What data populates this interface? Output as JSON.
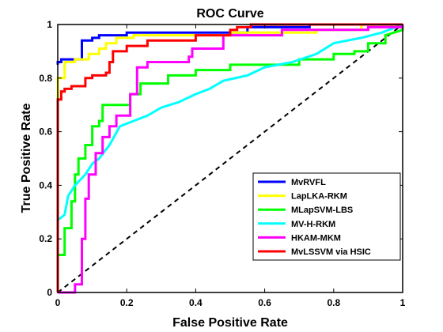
{
  "chart_data": {
    "type": "line",
    "title": "ROC Curve",
    "xlabel": "False Positive Rate",
    "ylabel": "True Positive Rate",
    "xlim": [
      0,
      1
    ],
    "ylim": [
      0,
      1
    ],
    "xticks": [
      "0",
      "0.2",
      "0.4",
      "0.6",
      "0.8",
      "1"
    ],
    "yticks": [
      "0",
      "0.2",
      "0.4",
      "0.6",
      "0.8",
      "1"
    ],
    "grid": false,
    "legend_position": "bottom-right",
    "diagonal": {
      "x": [
        0,
        1
      ],
      "y": [
        0,
        1
      ],
      "color": "#000000",
      "style": "dashed"
    },
    "series": [
      {
        "name": "MvRVFL",
        "color": "#0000FF",
        "points": [
          [
            0,
            0.85
          ],
          [
            0,
            0.86
          ],
          [
            0.01,
            0.86
          ],
          [
            0.01,
            0.87
          ],
          [
            0.07,
            0.87
          ],
          [
            0.07,
            0.94
          ],
          [
            0.1,
            0.94
          ],
          [
            0.1,
            0.95
          ],
          [
            0.12,
            0.95
          ],
          [
            0.12,
            0.96
          ],
          [
            0.2,
            0.96
          ],
          [
            0.2,
            0.97
          ],
          [
            0.28,
            0.97
          ],
          [
            0.55,
            0.97
          ],
          [
            0.55,
            0.99
          ],
          [
            0.73,
            0.99
          ],
          [
            0.73,
            1
          ],
          [
            1,
            1
          ]
        ]
      },
      {
        "name": "LapLKA-RKM",
        "color": "#FFFF00",
        "points": [
          [
            0,
            0.72
          ],
          [
            0,
            0.8
          ],
          [
            0.02,
            0.8
          ],
          [
            0.02,
            0.86
          ],
          [
            0.05,
            0.86
          ],
          [
            0.05,
            0.87
          ],
          [
            0.09,
            0.87
          ],
          [
            0.09,
            0.89
          ],
          [
            0.12,
            0.89
          ],
          [
            0.12,
            0.91
          ],
          [
            0.14,
            0.91
          ],
          [
            0.14,
            0.93
          ],
          [
            0.17,
            0.93
          ],
          [
            0.17,
            0.95
          ],
          [
            0.22,
            0.95
          ],
          [
            0.22,
            0.96
          ],
          [
            0.5,
            0.96
          ],
          [
            0.5,
            0.97
          ],
          [
            0.75,
            0.97
          ],
          [
            0.75,
            0.98
          ],
          [
            0.88,
            0.98
          ],
          [
            0.88,
            1
          ],
          [
            1,
            1
          ]
        ]
      },
      {
        "name": "MLapSVM-LBS",
        "color": "#00FF00",
        "points": [
          [
            0,
            0.14
          ],
          [
            0.02,
            0.14
          ],
          [
            0.02,
            0.24
          ],
          [
            0.04,
            0.24
          ],
          [
            0.04,
            0.34
          ],
          [
            0.05,
            0.34
          ],
          [
            0.05,
            0.44
          ],
          [
            0.06,
            0.44
          ],
          [
            0.06,
            0.5
          ],
          [
            0.08,
            0.5
          ],
          [
            0.08,
            0.55
          ],
          [
            0.1,
            0.55
          ],
          [
            0.1,
            0.62
          ],
          [
            0.12,
            0.62
          ],
          [
            0.12,
            0.64
          ],
          [
            0.13,
            0.64
          ],
          [
            0.13,
            0.7
          ],
          [
            0.21,
            0.7
          ],
          [
            0.21,
            0.74
          ],
          [
            0.24,
            0.74
          ],
          [
            0.24,
            0.78
          ],
          [
            0.32,
            0.78
          ],
          [
            0.32,
            0.81
          ],
          [
            0.4,
            0.81
          ],
          [
            0.4,
            0.83
          ],
          [
            0.5,
            0.83
          ],
          [
            0.5,
            0.85
          ],
          [
            0.7,
            0.85
          ],
          [
            0.7,
            0.87
          ],
          [
            0.8,
            0.87
          ],
          [
            0.8,
            0.89
          ],
          [
            0.86,
            0.89
          ],
          [
            0.86,
            0.9
          ],
          [
            0.9,
            0.9
          ],
          [
            0.9,
            0.93
          ],
          [
            0.95,
            0.93
          ],
          [
            0.95,
            0.96
          ],
          [
            1,
            0.98
          ],
          [
            1,
            1
          ]
        ]
      },
      {
        "name": "MV-H-RKM",
        "color": "#00FFFF",
        "points": [
          [
            0,
            0.27
          ],
          [
            0.02,
            0.29
          ],
          [
            0.03,
            0.36
          ],
          [
            0.05,
            0.4
          ],
          [
            0.08,
            0.44
          ],
          [
            0.1,
            0.48
          ],
          [
            0.12,
            0.5
          ],
          [
            0.15,
            0.55
          ],
          [
            0.18,
            0.62
          ],
          [
            0.22,
            0.64
          ],
          [
            0.26,
            0.66
          ],
          [
            0.3,
            0.69
          ],
          [
            0.35,
            0.71
          ],
          [
            0.4,
            0.74
          ],
          [
            0.44,
            0.76
          ],
          [
            0.48,
            0.79
          ],
          [
            0.55,
            0.81
          ],
          [
            0.6,
            0.84
          ],
          [
            0.68,
            0.86
          ],
          [
            0.75,
            0.89
          ],
          [
            0.8,
            0.93
          ],
          [
            0.88,
            0.95
          ],
          [
            0.94,
            0.97
          ],
          [
            1,
            1
          ]
        ]
      },
      {
        "name": "HKAM-MKM",
        "color": "#FF00FF",
        "points": [
          [
            0,
            0
          ],
          [
            0.05,
            0
          ],
          [
            0.05,
            0.03
          ],
          [
            0.07,
            0.03
          ],
          [
            0.07,
            0.2
          ],
          [
            0.08,
            0.2
          ],
          [
            0.08,
            0.35
          ],
          [
            0.09,
            0.35
          ],
          [
            0.09,
            0.44
          ],
          [
            0.11,
            0.44
          ],
          [
            0.11,
            0.52
          ],
          [
            0.13,
            0.52
          ],
          [
            0.13,
            0.58
          ],
          [
            0.15,
            0.58
          ],
          [
            0.15,
            0.62
          ],
          [
            0.17,
            0.62
          ],
          [
            0.17,
            0.66
          ],
          [
            0.21,
            0.66
          ],
          [
            0.21,
            0.74
          ],
          [
            0.23,
            0.74
          ],
          [
            0.23,
            0.84
          ],
          [
            0.26,
            0.84
          ],
          [
            0.26,
            0.86
          ],
          [
            0.38,
            0.86
          ],
          [
            0.38,
            0.88
          ],
          [
            0.39,
            0.88
          ],
          [
            0.39,
            0.91
          ],
          [
            0.48,
            0.91
          ],
          [
            0.48,
            0.96
          ],
          [
            0.65,
            0.96
          ],
          [
            0.65,
            0.98
          ],
          [
            0.9,
            0.98
          ],
          [
            0.9,
            0.99
          ],
          [
            1,
            0.99
          ],
          [
            1,
            1
          ]
        ]
      },
      {
        "name": "MvLSSVM via HSIC",
        "color": "#FF0000",
        "points": [
          [
            0,
            0
          ],
          [
            0,
            0.72
          ],
          [
            0.01,
            0.72
          ],
          [
            0.01,
            0.75
          ],
          [
            0.02,
            0.75
          ],
          [
            0.02,
            0.76
          ],
          [
            0.04,
            0.76
          ],
          [
            0.04,
            0.77
          ],
          [
            0.08,
            0.77
          ],
          [
            0.08,
            0.8
          ],
          [
            0.1,
            0.8
          ],
          [
            0.1,
            0.81
          ],
          [
            0.14,
            0.81
          ],
          [
            0.14,
            0.82
          ],
          [
            0.15,
            0.82
          ],
          [
            0.15,
            0.86
          ],
          [
            0.16,
            0.86
          ],
          [
            0.16,
            0.9
          ],
          [
            0.2,
            0.9
          ],
          [
            0.2,
            0.92
          ],
          [
            0.26,
            0.92
          ],
          [
            0.26,
            0.94
          ],
          [
            0.4,
            0.94
          ],
          [
            0.4,
            0.96
          ],
          [
            0.5,
            0.96
          ],
          [
            0.5,
            0.98
          ],
          [
            0.52,
            0.98
          ],
          [
            0.52,
            0.99
          ],
          [
            0.56,
            0.99
          ],
          [
            0.56,
            1
          ],
          [
            1,
            1
          ]
        ]
      }
    ]
  }
}
